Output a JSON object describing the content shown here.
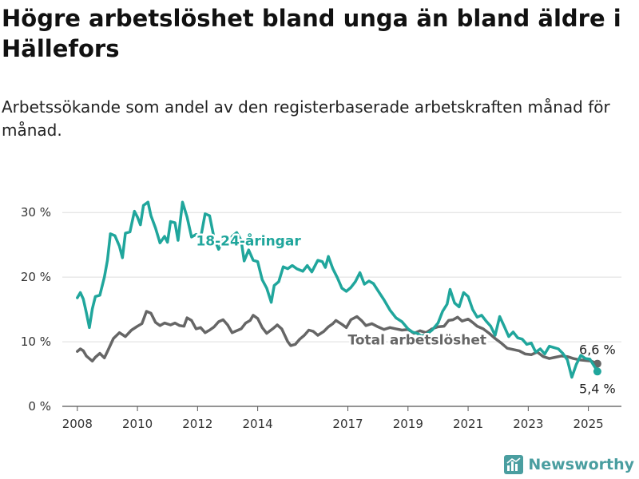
{
  "title": "Högre arbetslöshet bland unga än bland äldre i Hällefors",
  "subtitle": "Arbetssökande som andel av den registerbaserade arbetskraften månad för månad.",
  "brand": {
    "name": "Newsworthy",
    "icon": "newsworthy-logo-icon",
    "color": "#4a9ea0"
  },
  "chart_data": {
    "type": "line",
    "title": "Högre arbetslöshet bland unga än bland äldre i Hällefors",
    "subtitle": "Arbetssökande som andel av den registerbaserade arbetskraften månad för månad.",
    "xlim": [
      2007.5,
      2026.1
    ],
    "ylim": [
      0,
      32
    ],
    "grid": true,
    "x_ticks": [
      2008,
      2010,
      2012,
      2014,
      2017,
      2019,
      2021,
      2023,
      2025
    ],
    "x_tick_labels": [
      "2008",
      "2010",
      "2012",
      "2014",
      "2017",
      "2019",
      "2021",
      "2023",
      "2025"
    ],
    "y_ticks": [
      0,
      10,
      20,
      30
    ],
    "y_tick_labels": [
      "0 %",
      "10 %",
      "20 %",
      "30 %"
    ],
    "series": [
      {
        "name": "Total arbetslöshet",
        "color": "#666666",
        "end_label": "6,6 %",
        "points": [
          [
            2008.0,
            8.5
          ],
          [
            2008.1,
            8.9
          ],
          [
            2008.2,
            8.6
          ],
          [
            2008.3,
            7.8
          ],
          [
            2008.5,
            7.0
          ],
          [
            2008.6,
            7.6
          ],
          [
            2008.75,
            8.2
          ],
          [
            2008.9,
            7.5
          ],
          [
            2009.0,
            8.5
          ],
          [
            2009.2,
            10.5
          ],
          [
            2009.4,
            11.4
          ],
          [
            2009.6,
            10.8
          ],
          [
            2009.8,
            11.8
          ],
          [
            2010.0,
            12.4
          ],
          [
            2010.15,
            12.8
          ],
          [
            2010.3,
            14.7
          ],
          [
            2010.45,
            14.4
          ],
          [
            2010.6,
            13.0
          ],
          [
            2010.75,
            12.5
          ],
          [
            2010.9,
            12.9
          ],
          [
            2011.1,
            12.6
          ],
          [
            2011.25,
            12.9
          ],
          [
            2011.4,
            12.5
          ],
          [
            2011.55,
            12.4
          ],
          [
            2011.65,
            13.7
          ],
          [
            2011.8,
            13.3
          ],
          [
            2011.95,
            12.0
          ],
          [
            2012.1,
            12.2
          ],
          [
            2012.25,
            11.4
          ],
          [
            2012.4,
            11.8
          ],
          [
            2012.55,
            12.3
          ],
          [
            2012.7,
            13.1
          ],
          [
            2012.85,
            13.4
          ],
          [
            2013.0,
            12.6
          ],
          [
            2013.15,
            11.4
          ],
          [
            2013.3,
            11.7
          ],
          [
            2013.45,
            12.0
          ],
          [
            2013.6,
            12.9
          ],
          [
            2013.75,
            13.3
          ],
          [
            2013.85,
            14.1
          ],
          [
            2014.0,
            13.6
          ],
          [
            2014.15,
            12.2
          ],
          [
            2014.3,
            11.3
          ],
          [
            2014.5,
            12.0
          ],
          [
            2014.65,
            12.6
          ],
          [
            2014.8,
            12.0
          ],
          [
            2015.0,
            10.0
          ],
          [
            2015.1,
            9.4
          ],
          [
            2015.25,
            9.6
          ],
          [
            2015.4,
            10.4
          ],
          [
            2015.55,
            11.0
          ],
          [
            2015.7,
            11.8
          ],
          [
            2015.85,
            11.6
          ],
          [
            2016.0,
            11.0
          ],
          [
            2016.2,
            11.6
          ],
          [
            2016.35,
            12.3
          ],
          [
            2016.5,
            12.8
          ],
          [
            2016.6,
            13.3
          ],
          [
            2016.8,
            12.7
          ],
          [
            2016.95,
            12.2
          ],
          [
            2017.1,
            13.4
          ],
          [
            2017.3,
            13.9
          ],
          [
            2017.45,
            13.3
          ],
          [
            2017.6,
            12.5
          ],
          [
            2017.8,
            12.8
          ],
          [
            2018.0,
            12.3
          ],
          [
            2018.2,
            11.9
          ],
          [
            2018.4,
            12.2
          ],
          [
            2018.6,
            12.0
          ],
          [
            2018.8,
            11.8
          ],
          [
            2019.0,
            11.9
          ],
          [
            2019.2,
            11.3
          ],
          [
            2019.4,
            11.7
          ],
          [
            2019.6,
            11.4
          ],
          [
            2019.8,
            12.0
          ],
          [
            2020.0,
            12.3
          ],
          [
            2020.2,
            12.4
          ],
          [
            2020.35,
            13.3
          ],
          [
            2020.5,
            13.4
          ],
          [
            2020.65,
            13.8
          ],
          [
            2020.8,
            13.2
          ],
          [
            2021.0,
            13.5
          ],
          [
            2021.15,
            13.0
          ],
          [
            2021.3,
            12.4
          ],
          [
            2021.5,
            12.0
          ],
          [
            2021.7,
            11.3
          ],
          [
            2021.9,
            10.5
          ],
          [
            2022.1,
            9.8
          ],
          [
            2022.3,
            9.0
          ],
          [
            2022.5,
            8.8
          ],
          [
            2022.7,
            8.6
          ],
          [
            2022.9,
            8.1
          ],
          [
            2023.1,
            8.0
          ],
          [
            2023.3,
            8.4
          ],
          [
            2023.5,
            7.7
          ],
          [
            2023.7,
            7.4
          ],
          [
            2023.9,
            7.6
          ],
          [
            2024.1,
            7.8
          ],
          [
            2024.3,
            7.7
          ],
          [
            2024.5,
            7.4
          ],
          [
            2024.7,
            7.2
          ],
          [
            2024.9,
            7.1
          ],
          [
            2025.1,
            7.0
          ],
          [
            2025.3,
            6.6
          ]
        ]
      },
      {
        "name": "18-24-åringar",
        "color": "#20a69c",
        "end_label": "5,4 %",
        "points": [
          [
            2008.0,
            16.8
          ],
          [
            2008.1,
            17.6
          ],
          [
            2008.2,
            16.6
          ],
          [
            2008.3,
            14.5
          ],
          [
            2008.4,
            12.2
          ],
          [
            2008.5,
            15.1
          ],
          [
            2008.6,
            17.0
          ],
          [
            2008.75,
            17.2
          ],
          [
            2008.9,
            20.0
          ],
          [
            2009.0,
            22.6
          ],
          [
            2009.1,
            26.7
          ],
          [
            2009.25,
            26.4
          ],
          [
            2009.4,
            24.8
          ],
          [
            2009.5,
            23.0
          ],
          [
            2009.6,
            26.8
          ],
          [
            2009.75,
            27.0
          ],
          [
            2009.9,
            30.2
          ],
          [
            2010.0,
            29.3
          ],
          [
            2010.1,
            28.1
          ],
          [
            2010.2,
            31.1
          ],
          [
            2010.35,
            31.6
          ],
          [
            2010.45,
            29.5
          ],
          [
            2010.6,
            27.6
          ],
          [
            2010.75,
            25.3
          ],
          [
            2010.9,
            26.3
          ],
          [
            2011.0,
            25.4
          ],
          [
            2011.1,
            28.6
          ],
          [
            2011.25,
            28.4
          ],
          [
            2011.35,
            25.7
          ],
          [
            2011.5,
            31.6
          ],
          [
            2011.65,
            29.3
          ],
          [
            2011.8,
            26.2
          ],
          [
            2011.95,
            26.6
          ],
          [
            2012.1,
            26.0
          ],
          [
            2012.25,
            29.8
          ],
          [
            2012.4,
            29.5
          ],
          [
            2012.55,
            26.0
          ],
          [
            2012.7,
            24.3
          ],
          [
            2012.85,
            25.8
          ],
          [
            2013.0,
            24.8
          ],
          [
            2013.15,
            26.3
          ],
          [
            2013.3,
            26.9
          ],
          [
            2013.45,
            25.7
          ],
          [
            2013.55,
            22.5
          ],
          [
            2013.7,
            24.2
          ],
          [
            2013.85,
            22.6
          ],
          [
            2014.0,
            22.4
          ],
          [
            2014.15,
            19.6
          ],
          [
            2014.3,
            18.3
          ],
          [
            2014.45,
            16.1
          ],
          [
            2014.55,
            18.7
          ],
          [
            2014.7,
            19.3
          ],
          [
            2014.85,
            21.6
          ],
          [
            2015.0,
            21.3
          ],
          [
            2015.15,
            21.8
          ],
          [
            2015.3,
            21.3
          ],
          [
            2015.5,
            20.9
          ],
          [
            2015.65,
            21.8
          ],
          [
            2015.8,
            20.8
          ],
          [
            2016.0,
            22.6
          ],
          [
            2016.15,
            22.4
          ],
          [
            2016.25,
            21.5
          ],
          [
            2016.35,
            23.2
          ],
          [
            2016.5,
            21.3
          ],
          [
            2016.65,
            19.9
          ],
          [
            2016.8,
            18.3
          ],
          [
            2016.95,
            17.8
          ],
          [
            2017.1,
            18.4
          ],
          [
            2017.25,
            19.3
          ],
          [
            2017.4,
            20.7
          ],
          [
            2017.55,
            18.9
          ],
          [
            2017.7,
            19.4
          ],
          [
            2017.85,
            19.0
          ],
          [
            2018.0,
            17.9
          ],
          [
            2018.2,
            16.5
          ],
          [
            2018.4,
            14.9
          ],
          [
            2018.6,
            13.7
          ],
          [
            2018.8,
            13.1
          ],
          [
            2019.0,
            12.0
          ],
          [
            2019.15,
            11.5
          ],
          [
            2019.3,
            11.3
          ],
          [
            2019.45,
            10.9
          ],
          [
            2019.6,
            11.1
          ],
          [
            2019.8,
            11.8
          ],
          [
            2020.0,
            12.9
          ],
          [
            2020.15,
            14.7
          ],
          [
            2020.3,
            15.8
          ],
          [
            2020.4,
            18.1
          ],
          [
            2020.55,
            16.0
          ],
          [
            2020.7,
            15.4
          ],
          [
            2020.85,
            17.6
          ],
          [
            2021.0,
            17.0
          ],
          [
            2021.15,
            15.0
          ],
          [
            2021.3,
            13.8
          ],
          [
            2021.45,
            14.1
          ],
          [
            2021.6,
            13.2
          ],
          [
            2021.75,
            12.4
          ],
          [
            2021.9,
            11.0
          ],
          [
            2022.05,
            13.9
          ],
          [
            2022.2,
            12.4
          ],
          [
            2022.35,
            10.8
          ],
          [
            2022.5,
            11.5
          ],
          [
            2022.65,
            10.6
          ],
          [
            2022.8,
            10.4
          ],
          [
            2022.95,
            9.6
          ],
          [
            2023.1,
            9.8
          ],
          [
            2023.25,
            8.4
          ],
          [
            2023.4,
            8.9
          ],
          [
            2023.55,
            8.1
          ],
          [
            2023.7,
            9.3
          ],
          [
            2023.85,
            9.1
          ],
          [
            2024.0,
            8.9
          ],
          [
            2024.15,
            8.2
          ],
          [
            2024.3,
            7.2
          ],
          [
            2024.45,
            4.5
          ],
          [
            2024.6,
            6.5
          ],
          [
            2024.75,
            7.9
          ],
          [
            2024.9,
            7.4
          ],
          [
            2025.05,
            7.3
          ],
          [
            2025.2,
            6.2
          ],
          [
            2025.3,
            5.4
          ]
        ]
      }
    ],
    "annotations": [
      {
        "text": "18-24-åringar",
        "series": "18-24-åringar"
      },
      {
        "text": "Total arbetslöshet",
        "series": "Total arbetslöshet"
      }
    ]
  }
}
